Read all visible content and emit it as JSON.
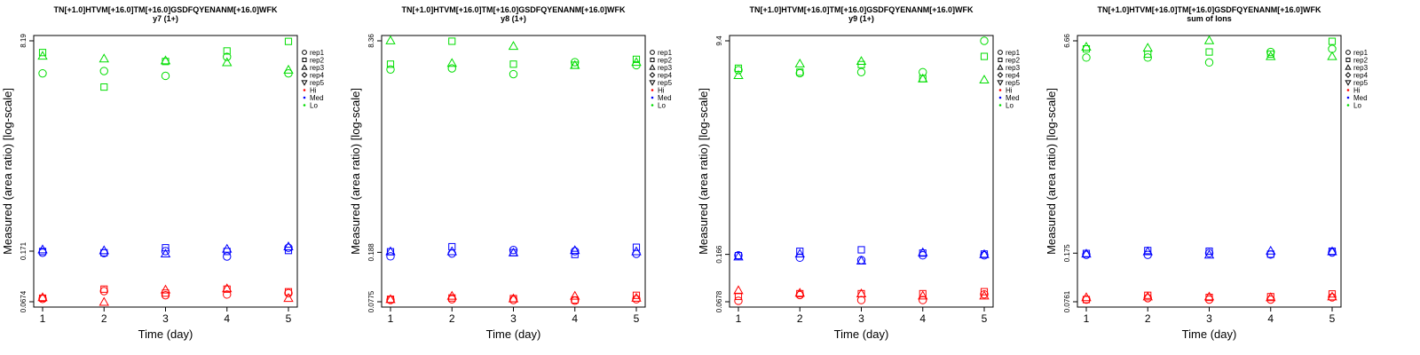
{
  "chart_data": [
    {
      "type": "scatter",
      "title": "TN[+1.0]HTVM[+16.0]TM[+16.0]GSDFQYENANM[+16.0]WFK",
      "subtitle": "y7 (1+)",
      "xlabel": "Time (day)",
      "ylabel": "Measured (area ratio) [log-scale]",
      "yscale": "log",
      "xlim": [
        1,
        5
      ],
      "ylim": [
        0.0674,
        8.19
      ],
      "x_ticks": [
        "1",
        "2",
        "3",
        "4",
        "5"
      ],
      "y_ticks": [
        "0.0674",
        "0.171",
        "8.19"
      ],
      "legend": {
        "placement": "right",
        "shapes": [
          "rep1",
          "rep2",
          "rep3",
          "rep4",
          "rep5"
        ],
        "colors": [
          {
            "label": "Hi",
            "color": "#ff0000"
          },
          {
            "label": "Med",
            "color": "#0000ff"
          },
          {
            "label": "Lo",
            "color": "#00dd00"
          }
        ]
      },
      "series": [
        {
          "group": "Hi",
          "replicate": "rep1",
          "points": [
            [
              1,
              0.071
            ],
            [
              2,
              0.082
            ],
            [
              3,
              0.076
            ],
            [
              4,
              0.077
            ],
            [
              5,
              0.079
            ]
          ]
        },
        {
          "group": "Hi",
          "replicate": "rep2",
          "points": [
            [
              1,
              0.072
            ],
            [
              2,
              0.085
            ],
            [
              3,
              0.079
            ],
            [
              4,
              0.085
            ],
            [
              5,
              0.081
            ]
          ]
        },
        {
          "group": "Hi",
          "replicate": "rep3",
          "points": [
            [
              1,
              0.073
            ],
            [
              2,
              0.067
            ],
            [
              3,
              0.084
            ],
            [
              4,
              0.086
            ],
            [
              5,
              0.072
            ]
          ]
        },
        {
          "group": "Med",
          "replicate": "rep1",
          "points": [
            [
              1,
              0.166
            ],
            [
              2,
              0.165
            ],
            [
              3,
              0.171
            ],
            [
              4,
              0.155
            ],
            [
              5,
              0.182
            ]
          ]
        },
        {
          "group": "Med",
          "replicate": "rep2",
          "points": [
            [
              1,
              0.17
            ],
            [
              2,
              0.166
            ],
            [
              3,
              0.182
            ],
            [
              4,
              0.17
            ],
            [
              5,
              0.173
            ]
          ]
        },
        {
          "group": "Med",
          "replicate": "rep3",
          "points": [
            [
              1,
              0.176
            ],
            [
              2,
              0.173
            ],
            [
              3,
              0.163
            ],
            [
              4,
              0.178
            ],
            [
              5,
              0.186
            ]
          ]
        },
        {
          "group": "Lo",
          "replicate": "rep1",
          "points": [
            [
              1,
              4.5
            ],
            [
              2,
              4.7
            ],
            [
              3,
              4.3
            ],
            [
              4,
              6.1
            ],
            [
              5,
              4.5
            ]
          ]
        },
        {
          "group": "Lo",
          "replicate": "rep2",
          "points": [
            [
              1,
              6.6
            ],
            [
              2,
              3.5
            ],
            [
              3,
              5.6
            ],
            [
              4,
              6.8
            ],
            [
              5,
              8.1
            ]
          ]
        },
        {
          "group": "Lo",
          "replicate": "rep3",
          "points": [
            [
              1,
              6.2
            ],
            [
              2,
              5.9
            ],
            [
              3,
              5.7
            ],
            [
              4,
              5.5
            ],
            [
              5,
              4.8
            ]
          ]
        }
      ]
    },
    {
      "type": "scatter",
      "title": "TN[+1.0]HTVM[+16.0]TM[+16.0]GSDFQYENANM[+16.0]WFK",
      "subtitle": "y8 (1+)",
      "xlabel": "Time (day)",
      "ylabel": "Measured (area ratio) [log-scale]",
      "yscale": "log",
      "xlim": [
        1,
        5
      ],
      "ylim": [
        0.0775,
        8.36
      ],
      "x_ticks": [
        "1",
        "2",
        "3",
        "4",
        "5"
      ],
      "y_ticks": [
        "0.0775",
        "0.188",
        "8.36"
      ],
      "legend": {
        "placement": "right",
        "shapes": [
          "rep1",
          "rep2",
          "rep3",
          "rep4",
          "rep5"
        ],
        "colors": [
          {
            "label": "Hi",
            "color": "#ff0000"
          },
          {
            "label": "Med",
            "color": "#0000ff"
          },
          {
            "label": "Lo",
            "color": "#00dd00"
          }
        ]
      },
      "series": [
        {
          "group": "Hi",
          "replicate": "rep1",
          "points": [
            [
              1,
              0.08
            ],
            [
              2,
              0.081
            ],
            [
              3,
              0.08
            ],
            [
              4,
              0.079
            ],
            [
              5,
              0.081
            ]
          ]
        },
        {
          "group": "Hi",
          "replicate": "rep2",
          "points": [
            [
              1,
              0.081
            ],
            [
              2,
              0.083
            ],
            [
              3,
              0.082
            ],
            [
              4,
              0.08
            ],
            [
              5,
              0.087
            ]
          ]
        },
        {
          "group": "Hi",
          "replicate": "rep3",
          "points": [
            [
              1,
              0.081
            ],
            [
              2,
              0.086
            ],
            [
              3,
              0.082
            ],
            [
              4,
              0.086
            ],
            [
              5,
              0.083
            ]
          ]
        },
        {
          "group": "Med",
          "replicate": "rep1",
          "points": [
            [
              1,
              0.175
            ],
            [
              2,
              0.184
            ],
            [
              3,
              0.196
            ],
            [
              4,
              0.192
            ],
            [
              5,
              0.183
            ]
          ]
        },
        {
          "group": "Med",
          "replicate": "rep2",
          "points": [
            [
              1,
              0.19
            ],
            [
              2,
              0.208
            ],
            [
              3,
              0.187
            ],
            [
              4,
              0.181
            ],
            [
              5,
              0.206
            ]
          ]
        },
        {
          "group": "Med",
          "replicate": "rep3",
          "points": [
            [
              1,
              0.191
            ],
            [
              2,
              0.191
            ],
            [
              3,
              0.187
            ],
            [
              4,
              0.195
            ],
            [
              5,
              0.191
            ]
          ]
        },
        {
          "group": "Lo",
          "replicate": "rep1",
          "points": [
            [
              1,
              5.0
            ],
            [
              2,
              5.1
            ],
            [
              3,
              4.6
            ],
            [
              4,
              5.7
            ],
            [
              5,
              5.4
            ]
          ]
        },
        {
          "group": "Lo",
          "replicate": "rep2",
          "points": [
            [
              1,
              5.5
            ],
            [
              2,
              8.3
            ],
            [
              3,
              5.5
            ],
            [
              4,
              5.4
            ],
            [
              5,
              6.0
            ]
          ]
        },
        {
          "group": "Lo",
          "replicate": "rep3",
          "points": [
            [
              1,
              8.4
            ],
            [
              2,
              5.6
            ],
            [
              3,
              7.6
            ],
            [
              4,
              5.4
            ],
            [
              5,
              5.7
            ]
          ]
        }
      ]
    },
    {
      "type": "scatter",
      "title": "TN[+1.0]HTVM[+16.0]TM[+16.0]GSDFQYENANM[+16.0]WFK",
      "subtitle": "y9 (1+)",
      "xlabel": "Time (day)",
      "ylabel": "Measured (area ratio) [log-scale]",
      "yscale": "log",
      "xlim": [
        1,
        5
      ],
      "ylim": [
        0.0678,
        9.4
      ],
      "x_ticks": [
        "1",
        "2",
        "3",
        "4",
        "5"
      ],
      "y_ticks": [
        "0.0678",
        "0.166",
        "9.4"
      ],
      "legend": {
        "placement": "right",
        "shapes": [
          "rep1",
          "rep2",
          "rep3",
          "rep4",
          "rep5"
        ],
        "colors": [
          {
            "label": "Hi",
            "color": "#ff0000"
          },
          {
            "label": "Med",
            "color": "#0000ff"
          },
          {
            "label": "Lo",
            "color": "#00dd00"
          }
        ]
      },
      "series": [
        {
          "group": "Hi",
          "replicate": "rep1",
          "points": [
            [
              1,
              0.069
            ],
            [
              2,
              0.077
            ],
            [
              3,
              0.07
            ],
            [
              4,
              0.07
            ],
            [
              5,
              0.078
            ]
          ]
        },
        {
          "group": "Hi",
          "replicate": "rep2",
          "points": [
            [
              1,
              0.075
            ],
            [
              2,
              0.079
            ],
            [
              3,
              0.079
            ],
            [
              4,
              0.079
            ],
            [
              5,
              0.082
            ]
          ]
        },
        {
          "group": "Hi",
          "replicate": "rep3",
          "points": [
            [
              1,
              0.084
            ],
            [
              2,
              0.08
            ],
            [
              3,
              0.079
            ],
            [
              4,
              0.076
            ],
            [
              5,
              0.076
            ]
          ]
        },
        {
          "group": "Med",
          "replicate": "rep1",
          "points": [
            [
              1,
              0.163
            ],
            [
              2,
              0.156
            ],
            [
              3,
              0.149
            ],
            [
              4,
              0.163
            ],
            [
              5,
              0.163
            ]
          ]
        },
        {
          "group": "Med",
          "replicate": "rep2",
          "points": [
            [
              1,
              0.162
            ],
            [
              2,
              0.176
            ],
            [
              3,
              0.181
            ],
            [
              4,
              0.17
            ],
            [
              5,
              0.167
            ]
          ]
        },
        {
          "group": "Med",
          "replicate": "rep3",
          "points": [
            [
              1,
              0.159
            ],
            [
              2,
              0.168
            ],
            [
              3,
              0.147
            ],
            [
              4,
              0.172
            ],
            [
              5,
              0.166
            ]
          ]
        },
        {
          "group": "Lo",
          "replicate": "rep1",
          "points": [
            [
              1,
              5.4
            ],
            [
              2,
              5.1
            ],
            [
              3,
              5.2
            ],
            [
              4,
              5.2
            ],
            [
              5,
              9.4
            ]
          ]
        },
        {
          "group": "Lo",
          "replicate": "rep2",
          "points": [
            [
              1,
              5.6
            ],
            [
              2,
              5.2
            ],
            [
              3,
              6.0
            ],
            [
              4,
              4.6
            ],
            [
              5,
              7.0
            ]
          ]
        },
        {
          "group": "Lo",
          "replicate": "rep3",
          "points": [
            [
              1,
              4.9
            ],
            [
              2,
              6.1
            ],
            [
              3,
              6.4
            ],
            [
              4,
              4.6
            ],
            [
              5,
              4.5
            ]
          ]
        }
      ]
    },
    {
      "type": "scatter",
      "title": "TN[+1.0]HTVM[+16.0]TM[+16.0]GSDFQYENANM[+16.0]WFK",
      "subtitle": "sum of Ions",
      "xlabel": "Time (day)",
      "ylabel": "Measured (area ratio) [log-scale]",
      "yscale": "log",
      "xlim": [
        1,
        5
      ],
      "ylim": [
        0.0761,
        6.66
      ],
      "x_ticks": [
        "1",
        "2",
        "3",
        "4",
        "5"
      ],
      "y_ticks": [
        "0.0761",
        "0.175",
        "6.66"
      ],
      "legend": {
        "placement": "right",
        "shapes": [
          "rep1",
          "rep2",
          "rep3",
          "rep4",
          "rep5"
        ],
        "colors": [
          {
            "label": "Hi",
            "color": "#ff0000"
          },
          {
            "label": "Med",
            "color": "#0000ff"
          },
          {
            "label": "Lo",
            "color": "#00dd00"
          }
        ]
      },
      "series": [
        {
          "group": "Hi",
          "replicate": "rep1",
          "points": [
            [
              1,
              0.079
            ],
            [
              2,
              0.081
            ],
            [
              3,
              0.079
            ],
            [
              4,
              0.079
            ],
            [
              5,
              0.082
            ]
          ]
        },
        {
          "group": "Hi",
          "replicate": "rep2",
          "points": [
            [
              1,
              0.079
            ],
            [
              2,
              0.085
            ],
            [
              3,
              0.082
            ],
            [
              4,
              0.083
            ],
            [
              5,
              0.087
            ]
          ]
        },
        {
          "group": "Hi",
          "replicate": "rep3",
          "points": [
            [
              1,
              0.082
            ],
            [
              2,
              0.083
            ],
            [
              3,
              0.083
            ],
            [
              4,
              0.082
            ],
            [
              5,
              0.083
            ]
          ]
        },
        {
          "group": "Med",
          "replicate": "rep1",
          "points": [
            [
              1,
              0.17
            ],
            [
              2,
              0.17
            ],
            [
              3,
              0.175
            ],
            [
              4,
              0.171
            ],
            [
              5,
              0.177
            ]
          ]
        },
        {
          "group": "Med",
          "replicate": "rep2",
          "points": [
            [
              1,
              0.174
            ],
            [
              2,
              0.183
            ],
            [
              3,
              0.181
            ],
            [
              4,
              0.172
            ],
            [
              5,
              0.181
            ]
          ]
        },
        {
          "group": "Med",
          "replicate": "rep3",
          "points": [
            [
              1,
              0.173
            ],
            [
              2,
              0.18
            ],
            [
              3,
              0.17
            ],
            [
              4,
              0.182
            ],
            [
              5,
              0.18
            ]
          ]
        },
        {
          "group": "Lo",
          "replicate": "rep1",
          "points": [
            [
              1,
              5.0
            ],
            [
              2,
              5.0
            ],
            [
              3,
              4.6
            ],
            [
              4,
              5.5
            ],
            [
              5,
              5.8
            ]
          ]
        },
        {
          "group": "Lo",
          "replicate": "rep2",
          "points": [
            [
              1,
              5.8
            ],
            [
              2,
              5.3
            ],
            [
              3,
              5.5
            ],
            [
              4,
              5.3
            ],
            [
              5,
              6.6
            ]
          ]
        },
        {
          "group": "Lo",
          "replicate": "rep3",
          "points": [
            [
              1,
              6.0
            ],
            [
              2,
              5.9
            ],
            [
              3,
              6.7
            ],
            [
              4,
              5.1
            ],
            [
              5,
              5.1
            ]
          ]
        }
      ]
    }
  ]
}
